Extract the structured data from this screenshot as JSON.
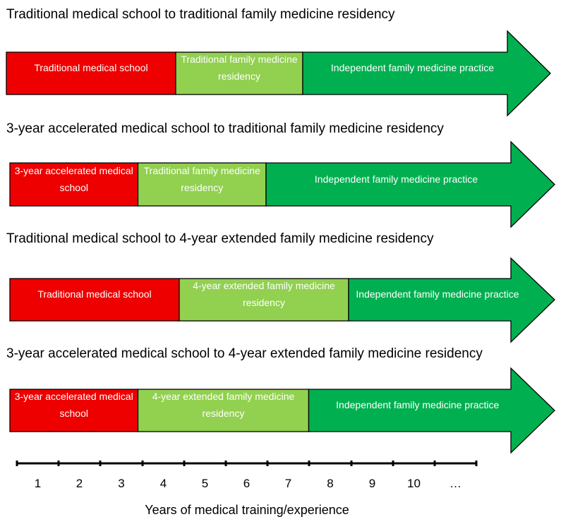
{
  "colors": {
    "medical_school": "#ee0000",
    "residency": "#92d050",
    "practice": "#00b050",
    "outline": "#000000"
  },
  "pathways": [
    {
      "title": "Traditional medical school to traditional family medicine residency",
      "segments": [
        {
          "label": "Traditional medical school",
          "kind": "medical_school",
          "years": 4
        },
        {
          "label": "Traditional family medicine residency",
          "kind": "residency",
          "years": 3
        },
        {
          "label": "Independent family medicine practice",
          "kind": "practice"
        }
      ]
    },
    {
      "title": "3-year accelerated medical school to traditional family medicine residency",
      "segments": [
        {
          "label": "3-year accelerated medical school",
          "kind": "medical_school",
          "years": 3
        },
        {
          "label": "Traditional family medicine residency",
          "kind": "residency",
          "years": 3
        },
        {
          "label": "Independent family medicine practice",
          "kind": "practice"
        }
      ]
    },
    {
      "title": "Traditional medical school to 4-year extended family medicine residency",
      "segments": [
        {
          "label": "Traditional medical school",
          "kind": "medical_school",
          "years": 4
        },
        {
          "label": "4-year extended family medicine residency",
          "kind": "residency",
          "years": 4
        },
        {
          "label": "Independent family medicine practice",
          "kind": "practice"
        }
      ]
    },
    {
      "title": "3-year accelerated medical school to 4-year extended family medicine residency",
      "segments": [
        {
          "label": "3-year accelerated medical school",
          "kind": "medical_school",
          "years": 3
        },
        {
          "label": "4-year extended family medicine residency",
          "kind": "residency",
          "years": 4
        },
        {
          "label": "Independent family medicine practice",
          "kind": "practice"
        }
      ]
    }
  ],
  "axis": {
    "ticks": [
      "1",
      "2",
      "3",
      "4",
      "5",
      "6",
      "7",
      "8",
      "9",
      "10",
      "…"
    ],
    "title": "Years of medical training/experience"
  }
}
